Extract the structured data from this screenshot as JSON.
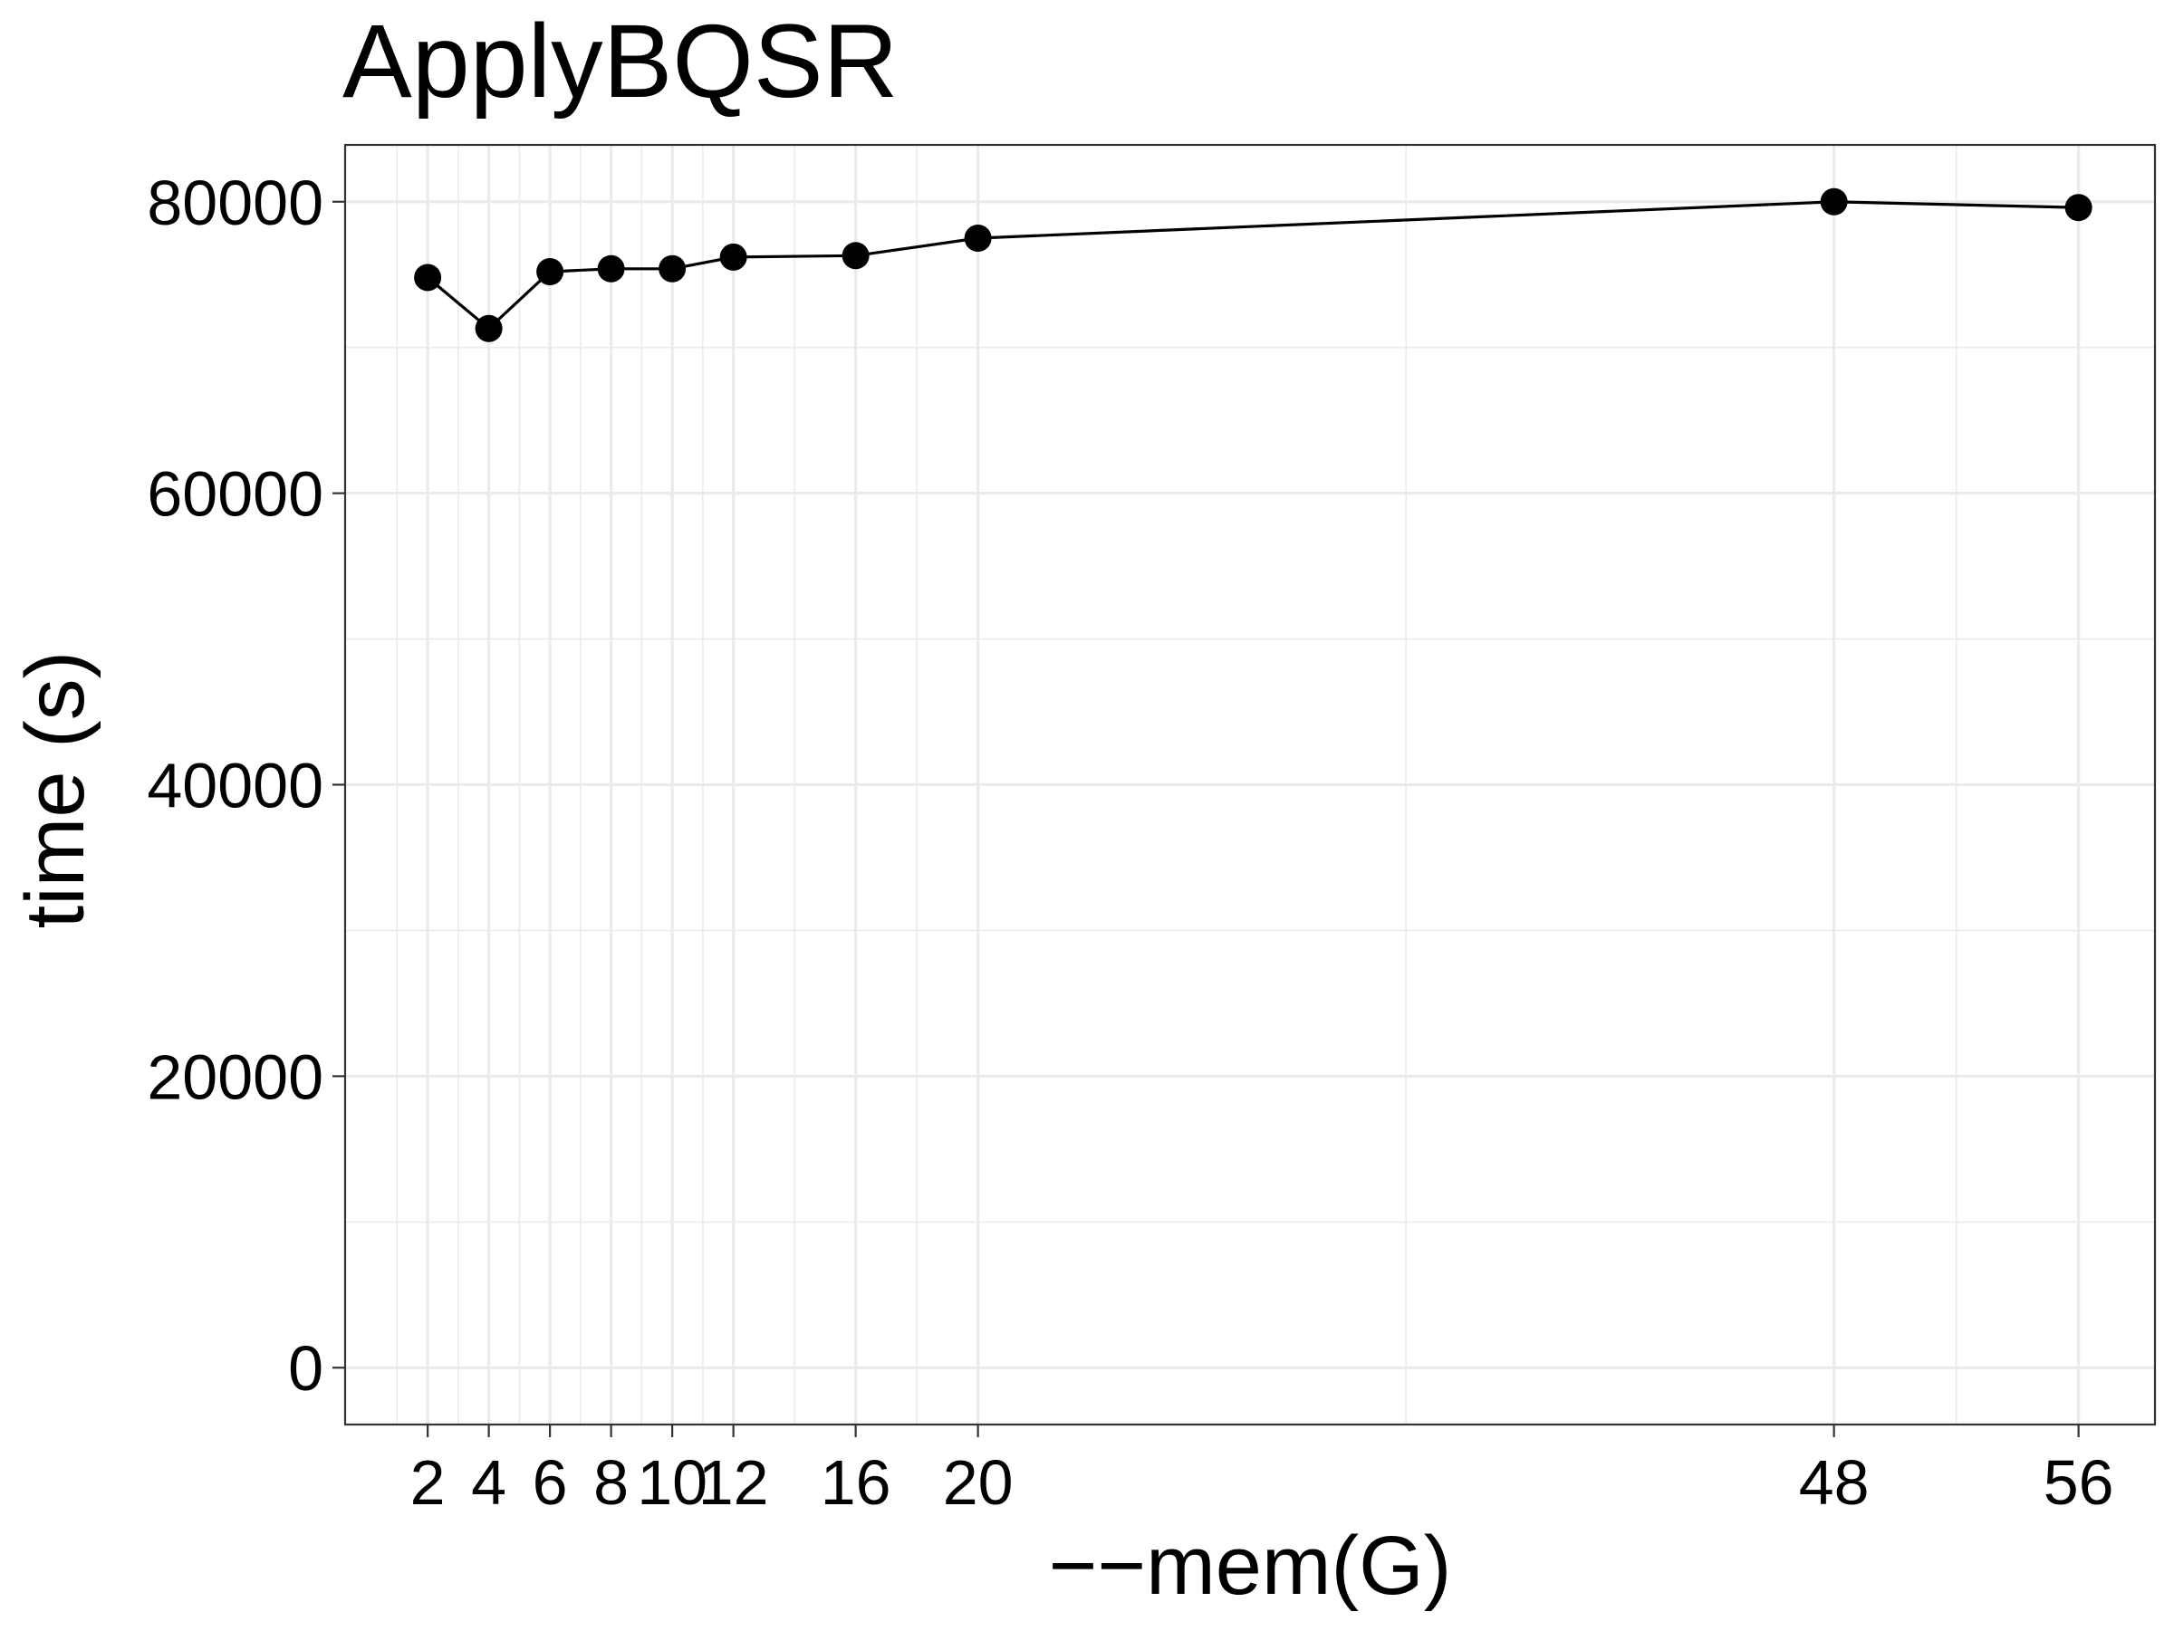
{
  "chart_data": {
    "type": "line",
    "title": "ApplyBQSR",
    "xlabel": "−−mem(G)",
    "ylabel": "time (s)",
    "x": [
      2,
      4,
      6,
      8,
      10,
      12,
      16,
      20,
      48,
      56
    ],
    "x_tick_labels": [
      "2",
      "4",
      "6",
      "8",
      "10",
      "12",
      "16",
      "20",
      "48",
      "56"
    ],
    "y_ticks": [
      0,
      20000,
      40000,
      60000,
      80000
    ],
    "y_tick_labels": [
      "0",
      "20000",
      "40000",
      "60000",
      "80000"
    ],
    "series": [
      {
        "values": [
          74800,
          71300,
          75200,
          75400,
          75400,
          76200,
          76300,
          77500,
          80000,
          79600
        ]
      }
    ],
    "xlim": [
      -0.7,
      58.5
    ],
    "ylim": [
      -3900,
      83900
    ],
    "grid": true,
    "colors": {
      "line": "#000000",
      "grid": "#ebebeb",
      "border": "#333333"
    }
  }
}
